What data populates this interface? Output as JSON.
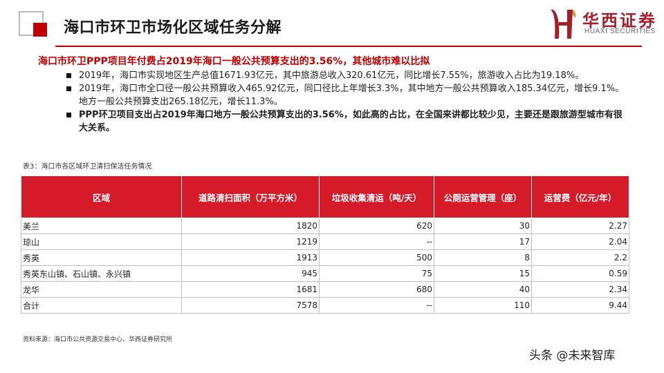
{
  "header": {
    "title": "海口市环卫市场化区域任务分解",
    "logo_cn": "华西证券",
    "logo_en": "HUAXI SECURITIES",
    "accent_color": "#c00000"
  },
  "summary": {
    "headline": "海口市环卫PPP项目年付费占2019年海口一般公共预算支出的3.56%，其他城市难以比拟",
    "bullets": [
      "2019年，海口市实现地区生产总值1671.93亿元，其中旅游总收入320.61亿元，同比增长7.55%，旅游收入占比为19.18%。",
      "2019年，海口市全口径一般公共预算收入465.92亿元，同口径比上年增长3.3%，其中地方一般公共预算收入185.34亿元，增长9.1%。地方一般公共预算支出265.18亿元，增长11.3%。",
      "PPP环卫项目支出占2019年海口地方一般公共预算支出的3.56%，如此高的占比，在全国来讲都比较少见，主要还是跟旅游型城市有很大关系。"
    ]
  },
  "table": {
    "caption": "表3：海口市各区域环卫清扫保洁任务情况",
    "header_color": "#d51a2a",
    "columns": [
      "区域",
      "道路清扫面积（万平方米）",
      "垃圾收集清运（吨/天）",
      "公厕运营管理（座）",
      "运营费（亿元/年）"
    ],
    "rows": [
      [
        "美兰",
        "1820",
        "620",
        "30",
        "2.27"
      ],
      [
        "琼山",
        "1219",
        "--",
        "17",
        "2.04"
      ],
      [
        "秀英",
        "1913",
        "500",
        "8",
        "2.2"
      ],
      [
        "秀英东山镇、石山镇、永兴镇",
        "945",
        "75",
        "15",
        "0.59"
      ],
      [
        "龙华",
        "1681",
        "680",
        "40",
        "2.34"
      ],
      [
        "合计",
        "7578",
        "--",
        "110",
        "9.44"
      ]
    ]
  },
  "footer": {
    "source": "资料来源：海口市公共资源交易中心、华西证券研究所",
    "watermark": "头条 @未来智库"
  }
}
